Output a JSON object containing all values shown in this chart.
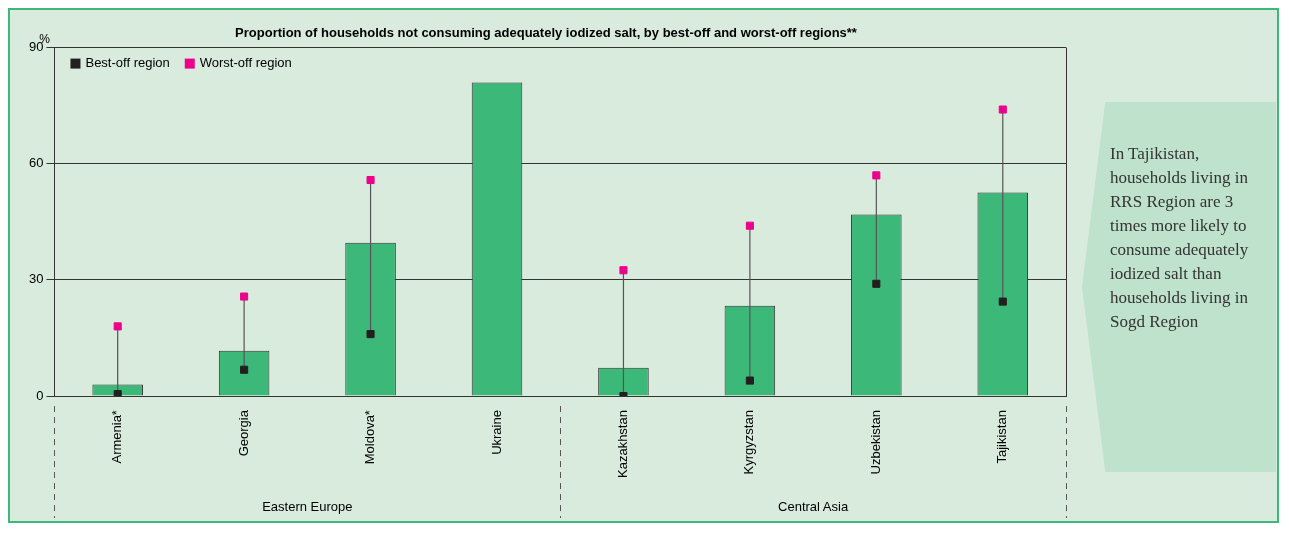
{
  "chart_data": {
    "type": "bar",
    "title": "Proportion of households not consuming adequately iodized salt, by best-off and worst-off regions**",
    "ylabel": "%",
    "categories": [
      "Armenia*",
      "Georgia",
      "Moldova*",
      "Ukraine",
      "Kazakhstan",
      "Kyrgyzstan",
      "Uzbekistan",
      "Tajikistan"
    ],
    "series": [
      {
        "color": "#3cb878",
        "values": [
          3,
          11.7,
          39.6,
          81,
          7.3,
          23.3,
          46.9,
          52.6
        ]
      },
      {
        "type": "scatter",
        "name": "Best-off region",
        "color": "#231f20",
        "values": [
          0.5,
          6.8,
          16,
          null,
          0,
          4,
          29,
          24.4
        ]
      },
      {
        "type": "scatter",
        "name": "Worst-off region",
        "color": "#ec008c",
        "values": [
          18,
          25.7,
          55.8,
          null,
          32.5,
          44,
          57,
          74
        ]
      }
    ],
    "ylim": [
      0,
      90
    ],
    "yticks": [
      0,
      30,
      60,
      90
    ],
    "grid": "y",
    "legend": "top left",
    "marker": "square",
    "annotations": [
      "Eastern Europe",
      "Central Asia",
      "In Tajikistan, households living in RRS Region are 3 times more likely to consume adequately iodized salt than households living in Sogd Region"
    ]
  }
}
